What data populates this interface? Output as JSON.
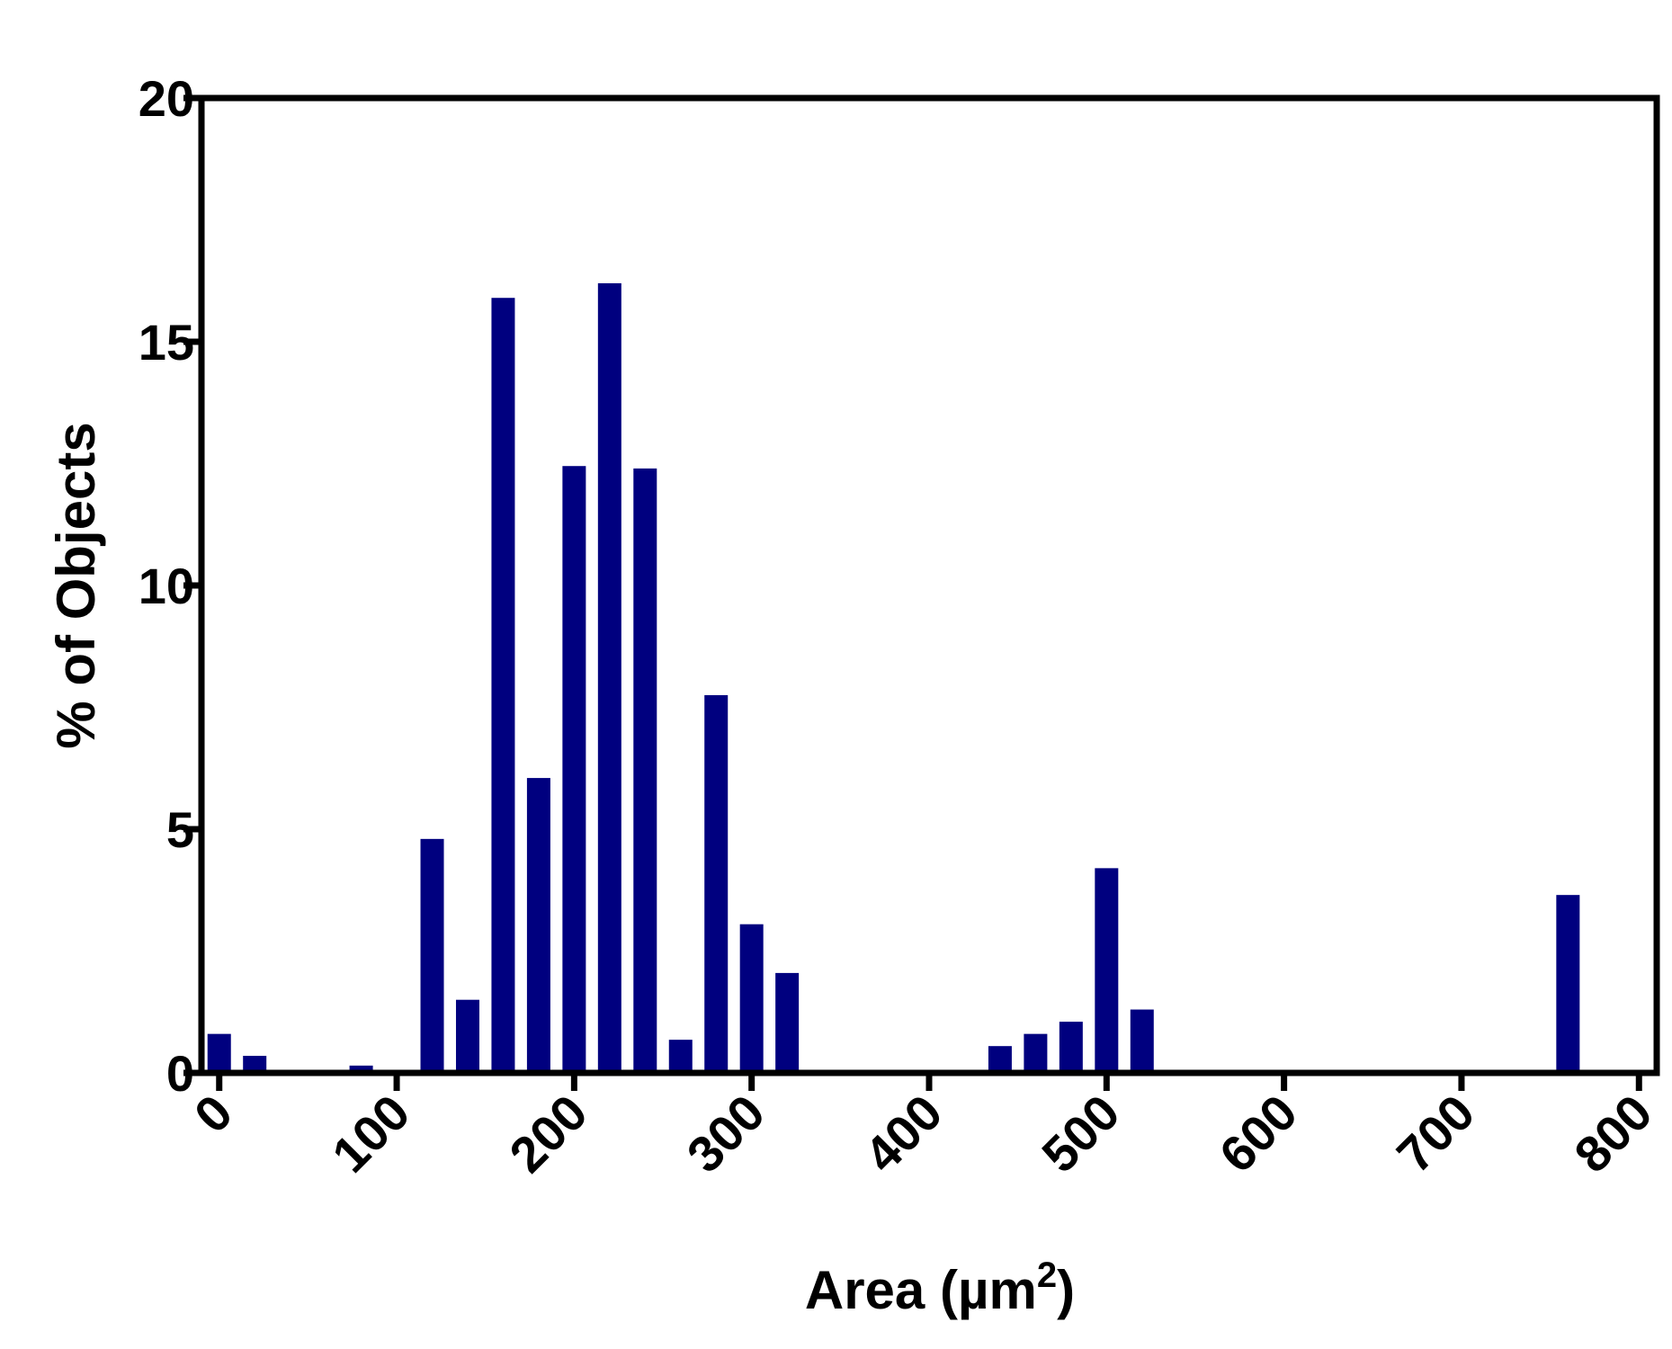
{
  "chart_data": {
    "type": "bar",
    "xlabel_main": "Area (",
    "xlabel_unit": "µm",
    "xlabel_sup": "2",
    "xlabel_close": ")",
    "ylabel": "% of Objects",
    "xlim": [
      -10,
      810
    ],
    "ylim": [
      0,
      20
    ],
    "x_ticks": [
      0,
      100,
      200,
      300,
      400,
      500,
      600,
      700,
      800
    ],
    "y_ticks": [
      0,
      5,
      10,
      15,
      20
    ],
    "grid": false,
    "bar_color": "#00007F",
    "x": [
      0,
      20,
      80,
      120,
      140,
      160,
      180,
      200,
      220,
      240,
      260,
      280,
      300,
      320,
      440,
      460,
      480,
      500,
      520,
      760
    ],
    "values": [
      0.8,
      0.35,
      0.15,
      4.8,
      1.5,
      15.9,
      6.05,
      12.45,
      16.2,
      12.4,
      0.68,
      7.75,
      3.05,
      2.05,
      0.55,
      0.8,
      1.05,
      4.2,
      1.3,
      3.65
    ]
  }
}
